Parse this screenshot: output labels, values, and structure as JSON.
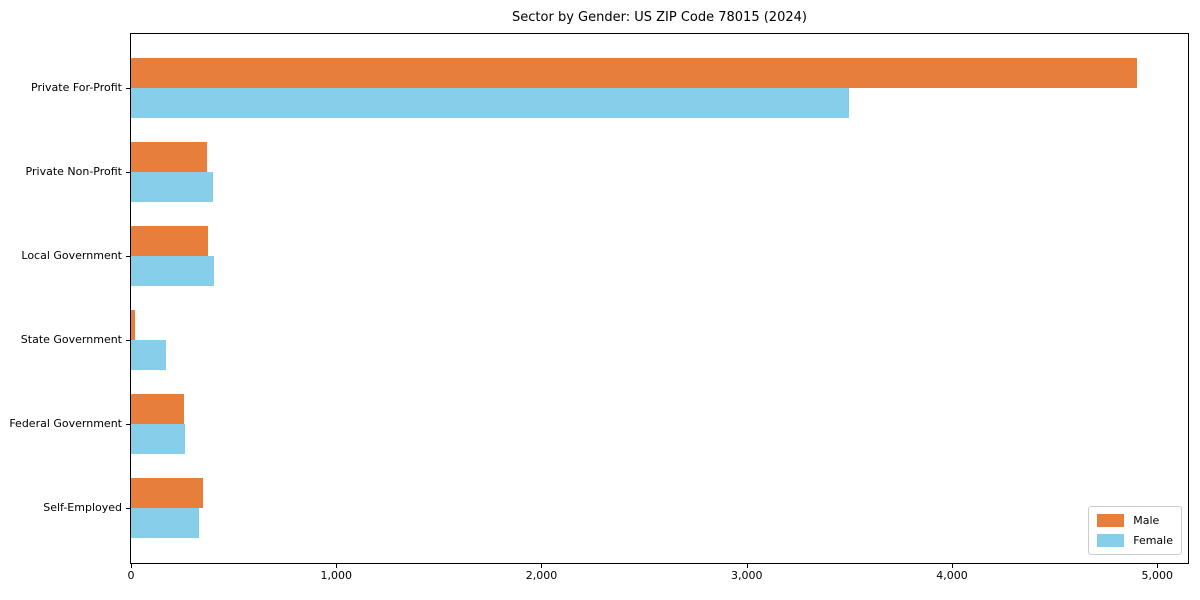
{
  "chart_data": {
    "type": "bar",
    "orientation": "horizontal",
    "title": "Sector by Gender: US ZIP Code 78015 (2024)",
    "categories": [
      "Private For-Profit",
      "Private Non-Profit",
      "Local Government",
      "State Government",
      "Federal Government",
      "Self-Employed"
    ],
    "series": [
      {
        "name": "Male",
        "color": "#E87E3C",
        "values": [
          4900,
          370,
          375,
          20,
          260,
          350
        ]
      },
      {
        "name": "Female",
        "color": "#87CEEB",
        "values": [
          3500,
          400,
          405,
          170,
          265,
          330
        ]
      }
    ],
    "xlabel": "",
    "ylabel": "",
    "xlim": [
      0,
      5150
    ],
    "xticks": [
      0,
      1000,
      2000,
      3000,
      4000,
      5000
    ],
    "xtick_labels": [
      "0",
      "1,000",
      "2,000",
      "3,000",
      "4,000",
      "5,000"
    ],
    "grid": false,
    "legend": {
      "position": "lower right",
      "entries": [
        "Male",
        "Female"
      ]
    },
    "colors": {
      "male": "#E87E3C",
      "female": "#87CEEB",
      "spine": "#000000",
      "legend_border": "#cccccc"
    }
  }
}
